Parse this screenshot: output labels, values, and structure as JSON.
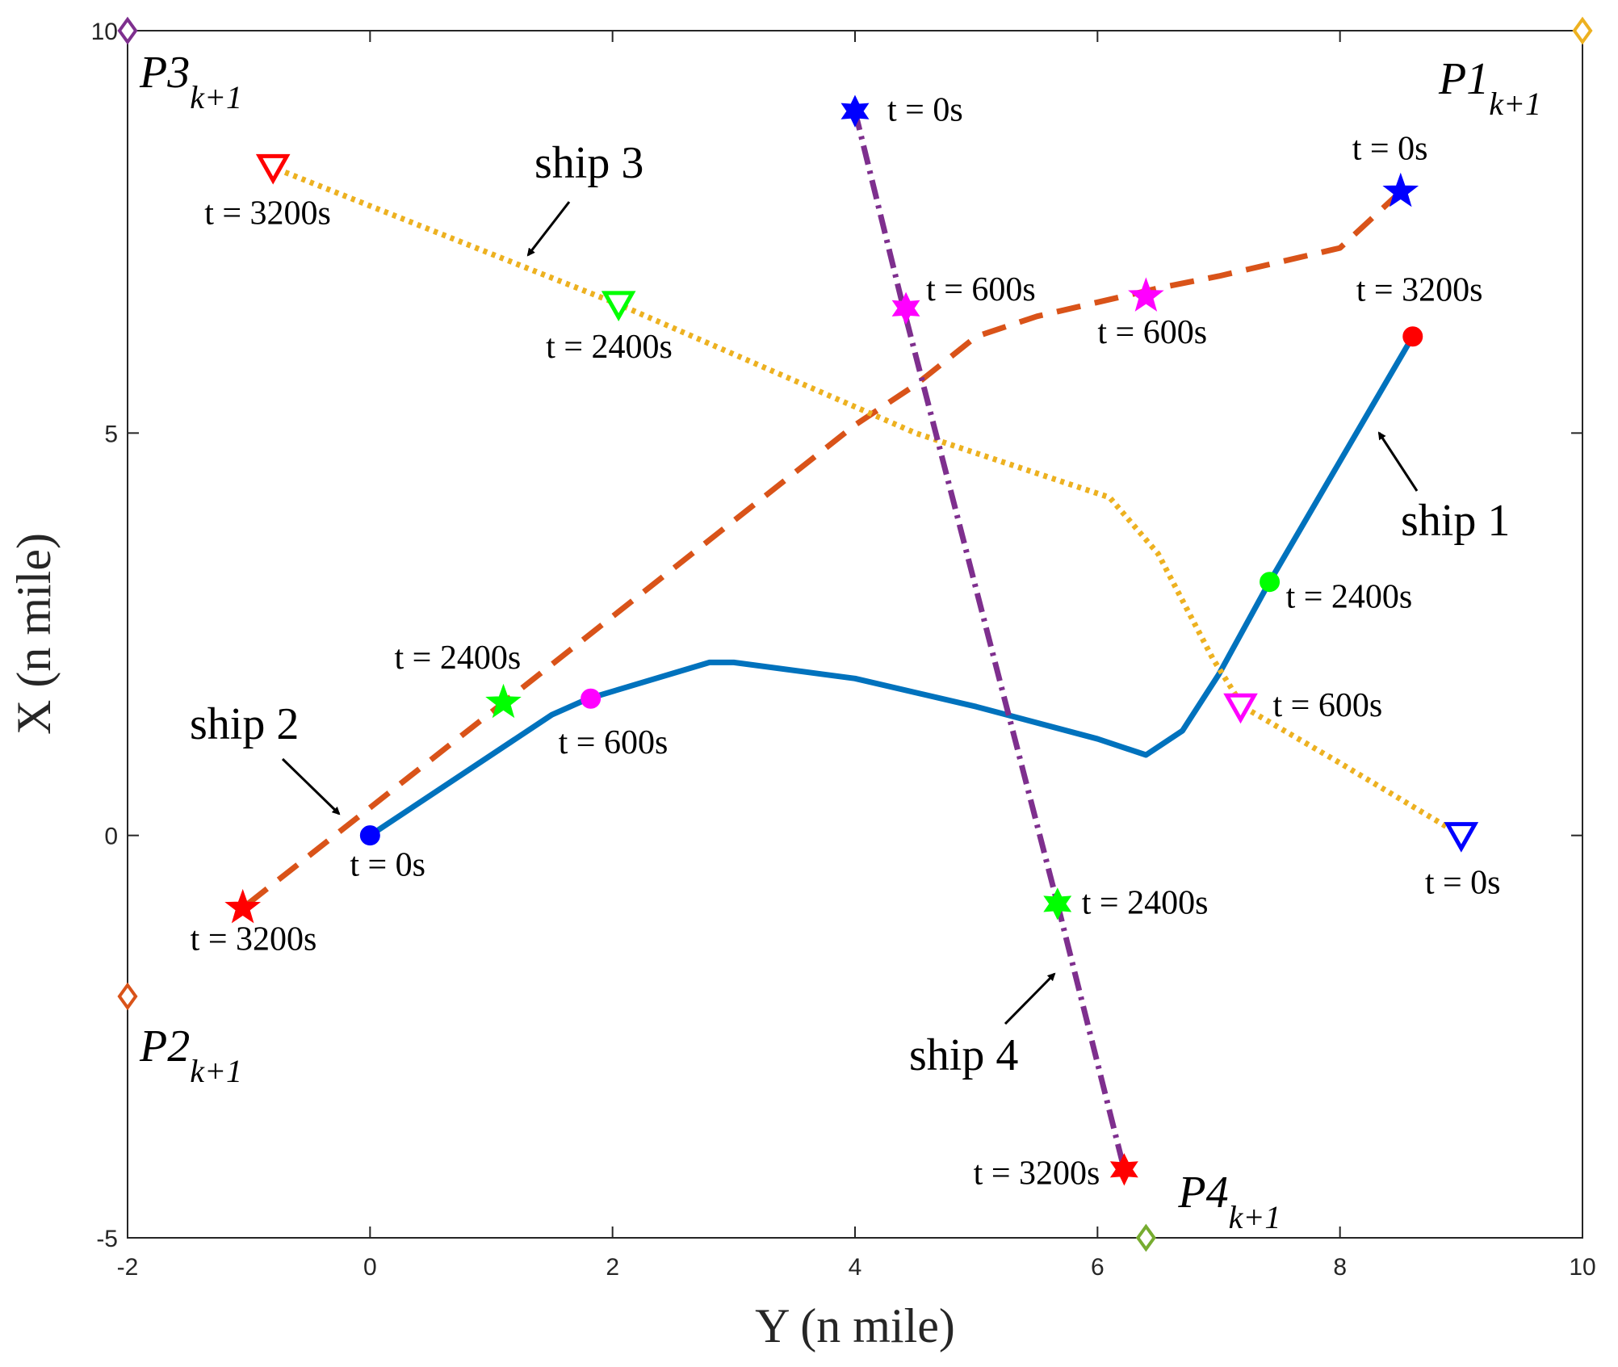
{
  "chart_data": {
    "type": "line",
    "xlabel": "Y (n mile)",
    "ylabel": "X (n mile)",
    "xlim": [
      -2,
      10
    ],
    "ylim": [
      -5,
      10
    ],
    "xticks": [
      -2,
      0,
      2,
      4,
      6,
      8,
      10
    ],
    "yticks": [
      -5,
      0,
      5,
      10
    ],
    "grid": false,
    "series": [
      {
        "name": "ship 1",
        "color": "#0072BD",
        "style": "solid",
        "points": [
          [
            0,
            0
          ],
          [
            1.5,
            1.5
          ],
          [
            1.8,
            1.7
          ],
          [
            2.8,
            2.15
          ],
          [
            3.0,
            2.15
          ],
          [
            4.0,
            1.95
          ],
          [
            5.0,
            1.6
          ],
          [
            6.0,
            1.2
          ],
          [
            6.4,
            1.0
          ],
          [
            6.7,
            1.3
          ],
          [
            7.0,
            2.0
          ],
          [
            7.4,
            3.1
          ],
          [
            8.6,
            6.2
          ]
        ],
        "label_anchor": [
          8.55,
          4.55
        ],
        "label_side": "right",
        "markers": [
          {
            "x": 0,
            "y": 0,
            "shape": "circle",
            "color": "#0000FF",
            "label": "t = 0s"
          },
          {
            "x": 1.82,
            "y": 1.7,
            "shape": "circle",
            "color": "#FF00FF",
            "label": "t = 600s"
          },
          {
            "x": 7.42,
            "y": 3.15,
            "shape": "circle",
            "color": "#00FF00",
            "label": "t = 2400s"
          },
          {
            "x": 8.6,
            "y": 6.2,
            "shape": "circle",
            "color": "#FF0000",
            "label": "t = 3200s"
          }
        ]
      },
      {
        "name": "ship 2",
        "color": "#D95319",
        "style": "dashed",
        "points": [
          [
            8.5,
            8.0
          ],
          [
            8.0,
            7.3
          ],
          [
            7.0,
            6.95
          ],
          [
            6.5,
            6.8
          ],
          [
            5.5,
            6.45
          ],
          [
            5.0,
            6.2
          ],
          [
            4.5,
            5.6
          ],
          [
            4.0,
            5.1
          ],
          [
            1.1,
            1.65
          ],
          [
            -1.05,
            -0.9
          ]
        ],
        "label_anchor": [
          -0.2,
          0.3
        ],
        "label_side": "left",
        "markers": [
          {
            "x": 8.5,
            "y": 8.0,
            "shape": "star",
            "color": "#0000FF",
            "label": "t = 0s"
          },
          {
            "x": 6.4,
            "y": 6.7,
            "shape": "star",
            "color": "#FF00FF",
            "label": "t = 600s"
          },
          {
            "x": 1.1,
            "y": 1.65,
            "shape": "star",
            "color": "#00FF00",
            "label": "t = 2400s"
          },
          {
            "x": -1.05,
            "y": -0.9,
            "shape": "star",
            "color": "#FF0000",
            "label": "t = 3200s"
          }
        ]
      },
      {
        "name": "ship 3",
        "color": "#EDB120",
        "style": "dotted",
        "points": [
          [
            9.0,
            0.0
          ],
          [
            8.0,
            0.9
          ],
          [
            7.2,
            1.6
          ],
          [
            6.95,
            2.2
          ],
          [
            6.5,
            3.5
          ],
          [
            6.1,
            4.2
          ],
          [
            4.5,
            5.0
          ],
          [
            2.05,
            6.6
          ],
          [
            -0.8,
            8.3
          ]
        ],
        "label_anchor": [
          1.3,
          7.2
        ],
        "label_side": "left",
        "markers": [
          {
            "x": 9.0,
            "y": 0.0,
            "shape": "triangle",
            "color": "#0000FF",
            "label": "t = 0s"
          },
          {
            "x": 7.18,
            "y": 1.6,
            "shape": "triangle",
            "color": "#FF00FF",
            "label": "t = 600s"
          },
          {
            "x": 2.05,
            "y": 6.6,
            "shape": "triangle",
            "color": "#00FF00",
            "label": "t = 2400s"
          },
          {
            "x": -0.8,
            "y": 8.3,
            "shape": "triangle",
            "color": "#FF0000",
            "label": "t = 3200s"
          }
        ]
      },
      {
        "name": "ship 4",
        "color": "#7E2F8E",
        "style": "dashdot",
        "points": [
          [
            4.0,
            9.0
          ],
          [
            4.4,
            6.55
          ],
          [
            5.67,
            -0.85
          ],
          [
            6.22,
            -4.15
          ]
        ],
        "label_anchor": [
          5.65,
          -1.6
        ],
        "label_side": "left",
        "markers": [
          {
            "x": 4.0,
            "y": 9.0,
            "shape": "hexagram",
            "color": "#0000FF",
            "label": "t = 0s"
          },
          {
            "x": 4.42,
            "y": 6.55,
            "shape": "hexagram",
            "color": "#FF00FF",
            "label": "t = 600s"
          },
          {
            "x": 5.67,
            "y": -0.85,
            "shape": "hexagram",
            "color": "#00FF00",
            "label": "t = 2400s"
          },
          {
            "x": 6.22,
            "y": -4.15,
            "shape": "hexagram",
            "color": "#FF0000",
            "label": "t = 3200s"
          }
        ]
      }
    ],
    "target_points": [
      {
        "name": "P1",
        "subscript": "k+1",
        "x": 10,
        "y": 10,
        "color": "#EDB120"
      },
      {
        "name": "P2",
        "subscript": "k+1",
        "x": -2,
        "y": -2,
        "color": "#D95319"
      },
      {
        "name": "P3",
        "subscript": "k+1",
        "x": -2,
        "y": 10,
        "color": "#7E2F8E"
      },
      {
        "name": "P4",
        "subscript": "k+1",
        "x": 6.4,
        "y": -5,
        "color": "#77AC30"
      }
    ]
  }
}
